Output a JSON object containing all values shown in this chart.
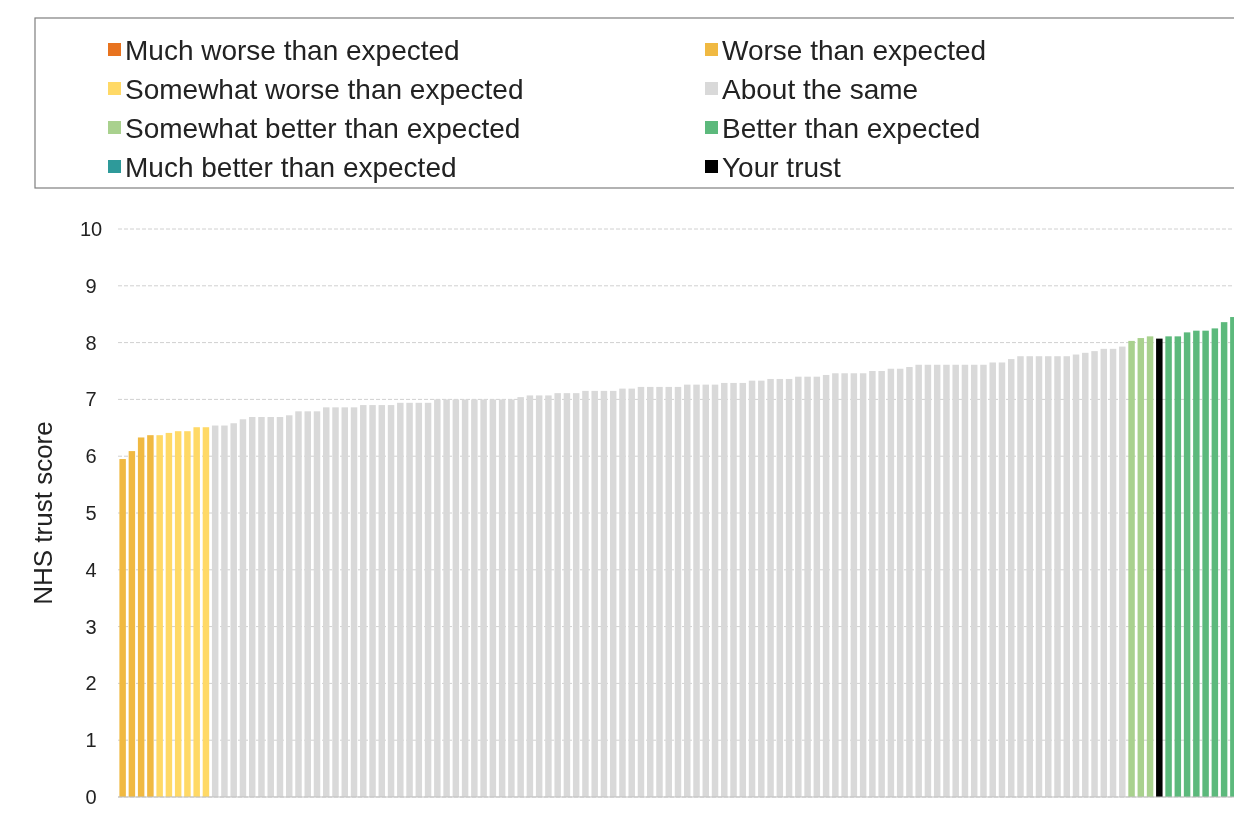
{
  "chart_data": {
    "type": "bar",
    "stacked": true,
    "ylabel": "NHS trust score",
    "ylim": [
      0,
      10
    ],
    "yticks": [
      0,
      1,
      2,
      3,
      4,
      5,
      6,
      7,
      8,
      9,
      10
    ],
    "grid": "y",
    "legend": "top",
    "categories": [
      null,
      null,
      null,
      null,
      null,
      null,
      null,
      null,
      null,
      null,
      null,
      null,
      null,
      null,
      null,
      null,
      null,
      null,
      null,
      null,
      null,
      null,
      null,
      null,
      null,
      null,
      null,
      null,
      null,
      null,
      null,
      null,
      null,
      null,
      null,
      null,
      null,
      null,
      null,
      null,
      null,
      null,
      null,
      null,
      null,
      null,
      null,
      null,
      null,
      null,
      null,
      null,
      null,
      null,
      null,
      null,
      null,
      null,
      null,
      null,
      null,
      null,
      null,
      null,
      null,
      null,
      null,
      null,
      null,
      null,
      null,
      null,
      null,
      null,
      null,
      null,
      null,
      null,
      null,
      null,
      null,
      null,
      null,
      null,
      null,
      null,
      null,
      null,
      null,
      null,
      null,
      null,
      null,
      null,
      null,
      null,
      null,
      null,
      null,
      null,
      null,
      null,
      null,
      null,
      null,
      null,
      null,
      null,
      null,
      null,
      null,
      null,
      null,
      null,
      null,
      null,
      null,
      null,
      null,
      null,
      null
    ],
    "series": [
      {
        "name": "Much worse than expected",
        "color": "#e8731f",
        "values": [
          null,
          null,
          null,
          null,
          null,
          null,
          null,
          null,
          null,
          null,
          null,
          null,
          null,
          null,
          null,
          null,
          null,
          null,
          null,
          null,
          null,
          null,
          null,
          null,
          null,
          null,
          null,
          null,
          null,
          null,
          null,
          null,
          null,
          null,
          null,
          null,
          null,
          null,
          null,
          null,
          null,
          null,
          null,
          null,
          null,
          null,
          null,
          null,
          null,
          null,
          null,
          null,
          null,
          null,
          null,
          null,
          null,
          null,
          null,
          null,
          null,
          null,
          null,
          null,
          null,
          null,
          null,
          null,
          null,
          null,
          null,
          null,
          null,
          null,
          null,
          null,
          null,
          null,
          null,
          null,
          null,
          null,
          null,
          null,
          null,
          null,
          null,
          null,
          null,
          null,
          null,
          null,
          null,
          null,
          null,
          null,
          null,
          null,
          null,
          null,
          null,
          null,
          null,
          null,
          null,
          null,
          null,
          null,
          null,
          null,
          null,
          null,
          null,
          null,
          null,
          null,
          null,
          null,
          null,
          null,
          null
        ]
      },
      {
        "name": "Worse than expected",
        "color": "#f0b942",
        "values": [
          5.95,
          6.09,
          6.33,
          6.37,
          null,
          null,
          null,
          null,
          null,
          null,
          null,
          null,
          null,
          null,
          null,
          null,
          null,
          null,
          null,
          null,
          null,
          null,
          null,
          null,
          null,
          null,
          null,
          null,
          null,
          null,
          null,
          null,
          null,
          null,
          null,
          null,
          null,
          null,
          null,
          null,
          null,
          null,
          null,
          null,
          null,
          null,
          null,
          null,
          null,
          null,
          null,
          null,
          null,
          null,
          null,
          null,
          null,
          null,
          null,
          null,
          null,
          null,
          null,
          null,
          null,
          null,
          null,
          null,
          null,
          null,
          null,
          null,
          null,
          null,
          null,
          null,
          null,
          null,
          null,
          null,
          null,
          null,
          null,
          null,
          null,
          null,
          null,
          null,
          null,
          null,
          null,
          null,
          null,
          null,
          null,
          null,
          null,
          null,
          null,
          null,
          null,
          null,
          null,
          null,
          null,
          null,
          null,
          null,
          null,
          null,
          null,
          null,
          null,
          null,
          null,
          null,
          null,
          null,
          null,
          null,
          null
        ]
      },
      {
        "name": "Somewhat worse than expected",
        "color": "#ffd966",
        "values": [
          null,
          null,
          null,
          null,
          6.37,
          6.41,
          6.44,
          6.44,
          6.51,
          6.51,
          null,
          null,
          null,
          null,
          null,
          null,
          null,
          null,
          null,
          null,
          null,
          null,
          null,
          null,
          null,
          null,
          null,
          null,
          null,
          null,
          null,
          null,
          null,
          null,
          null,
          null,
          null,
          null,
          null,
          null,
          null,
          null,
          null,
          null,
          null,
          null,
          null,
          null,
          null,
          null,
          null,
          null,
          null,
          null,
          null,
          null,
          null,
          null,
          null,
          null,
          null,
          null,
          null,
          null,
          null,
          null,
          null,
          null,
          null,
          null,
          null,
          null,
          null,
          null,
          null,
          null,
          null,
          null,
          null,
          null,
          null,
          null,
          null,
          null,
          null,
          null,
          null,
          null,
          null,
          null,
          null,
          null,
          null,
          null,
          null,
          null,
          null,
          null,
          null,
          null,
          null,
          null,
          null,
          null,
          null,
          null,
          null,
          null,
          null,
          null,
          null,
          null,
          null,
          null,
          null,
          null,
          null,
          null,
          null,
          null,
          null
        ]
      },
      {
        "name": "About the same",
        "color": "#d9d9d9",
        "values": [
          null,
          null,
          null,
          null,
          null,
          null,
          null,
          null,
          null,
          null,
          6.54,
          6.54,
          6.58,
          6.65,
          6.69,
          6.69,
          6.69,
          6.69,
          6.72,
          6.79,
          6.79,
          6.79,
          6.86,
          6.86,
          6.86,
          6.86,
          6.9,
          6.9,
          6.9,
          6.9,
          6.94,
          6.94,
          6.94,
          6.94,
          7.0,
          7.0,
          7.0,
          7.0,
          7.0,
          7.0,
          7.0,
          7.0,
          7.0,
          7.04,
          7.07,
          7.07,
          7.07,
          7.11,
          7.11,
          7.11,
          7.15,
          7.15,
          7.15,
          7.15,
          7.19,
          7.19,
          7.22,
          7.22,
          7.22,
          7.22,
          7.22,
          7.26,
          7.26,
          7.26,
          7.26,
          7.29,
          7.29,
          7.29,
          7.33,
          7.33,
          7.36,
          7.36,
          7.36,
          7.4,
          7.4,
          7.4,
          7.43,
          7.46,
          7.46,
          7.46,
          7.46,
          7.5,
          7.5,
          7.54,
          7.54,
          7.57,
          7.61,
          7.61,
          7.61,
          7.61,
          7.61,
          7.61,
          7.61,
          7.61,
          7.65,
          7.65,
          7.71,
          7.76,
          7.76,
          7.76,
          7.76,
          7.76,
          7.76,
          7.79,
          7.82,
          7.85,
          7.89,
          7.89,
          7.93,
          null,
          null,
          null,
          null,
          null,
          null,
          null,
          null,
          null,
          null,
          null,
          null
        ]
      },
      {
        "name": "Somewhat better than expected",
        "color": "#a9d18e",
        "values": [
          null,
          null,
          null,
          null,
          null,
          null,
          null,
          null,
          null,
          null,
          null,
          null,
          null,
          null,
          null,
          null,
          null,
          null,
          null,
          null,
          null,
          null,
          null,
          null,
          null,
          null,
          null,
          null,
          null,
          null,
          null,
          null,
          null,
          null,
          null,
          null,
          null,
          null,
          null,
          null,
          null,
          null,
          null,
          null,
          null,
          null,
          null,
          null,
          null,
          null,
          null,
          null,
          null,
          null,
          null,
          null,
          null,
          null,
          null,
          null,
          null,
          null,
          null,
          null,
          null,
          null,
          null,
          null,
          null,
          null,
          null,
          null,
          null,
          null,
          null,
          null,
          null,
          null,
          null,
          null,
          null,
          null,
          null,
          null,
          null,
          null,
          null,
          null,
          null,
          null,
          null,
          null,
          null,
          null,
          null,
          null,
          null,
          null,
          null,
          null,
          null,
          null,
          null,
          null,
          null,
          null,
          null,
          null,
          null,
          8.03,
          8.08,
          8.11,
          null,
          null,
          null,
          null,
          null,
          null,
          null,
          null,
          null
        ]
      },
      {
        "name": "Better than expected",
        "color": "#5cb97c",
        "values": [
          null,
          null,
          null,
          null,
          null,
          null,
          null,
          null,
          null,
          null,
          null,
          null,
          null,
          null,
          null,
          null,
          null,
          null,
          null,
          null,
          null,
          null,
          null,
          null,
          null,
          null,
          null,
          null,
          null,
          null,
          null,
          null,
          null,
          null,
          null,
          null,
          null,
          null,
          null,
          null,
          null,
          null,
          null,
          null,
          null,
          null,
          null,
          null,
          null,
          null,
          null,
          null,
          null,
          null,
          null,
          null,
          null,
          null,
          null,
          null,
          null,
          null,
          null,
          null,
          null,
          null,
          null,
          null,
          null,
          null,
          null,
          null,
          null,
          null,
          null,
          null,
          null,
          null,
          null,
          null,
          null,
          null,
          null,
          null,
          null,
          null,
          null,
          null,
          null,
          null,
          null,
          null,
          null,
          null,
          null,
          null,
          null,
          null,
          null,
          null,
          null,
          null,
          null,
          null,
          null,
          null,
          null,
          null,
          null,
          null,
          null,
          null,
          null,
          8.11,
          8.11,
          8.18,
          8.21,
          8.21,
          8.25,
          8.36,
          8.45
        ]
      },
      {
        "name": "Much better than expected",
        "color": "#2e9a9a",
        "values": [
          null,
          null,
          null,
          null,
          null,
          null,
          null,
          null,
          null,
          null,
          null,
          null,
          null,
          null,
          null,
          null,
          null,
          null,
          null,
          null,
          null,
          null,
          null,
          null,
          null,
          null,
          null,
          null,
          null,
          null,
          null,
          null,
          null,
          null,
          null,
          null,
          null,
          null,
          null,
          null,
          null,
          null,
          null,
          null,
          null,
          null,
          null,
          null,
          null,
          null,
          null,
          null,
          null,
          null,
          null,
          null,
          null,
          null,
          null,
          null,
          null,
          null,
          null,
          null,
          null,
          null,
          null,
          null,
          null,
          null,
          null,
          null,
          null,
          null,
          null,
          null,
          null,
          null,
          null,
          null,
          null,
          null,
          null,
          null,
          null,
          null,
          null,
          null,
          null,
          null,
          null,
          null,
          null,
          null,
          null,
          null,
          null,
          null,
          null,
          null,
          null,
          null,
          null,
          null,
          null,
          null,
          null,
          null,
          null,
          null,
          null,
          null,
          null,
          null,
          null,
          null,
          null,
          null,
          null,
          null,
          null
        ]
      },
      {
        "name": "Your trust",
        "color": "#000000",
        "values": [
          null,
          null,
          null,
          null,
          null,
          null,
          null,
          null,
          null,
          null,
          null,
          null,
          null,
          null,
          null,
          null,
          null,
          null,
          null,
          null,
          null,
          null,
          null,
          null,
          null,
          null,
          null,
          null,
          null,
          null,
          null,
          null,
          null,
          null,
          null,
          null,
          null,
          null,
          null,
          null,
          null,
          null,
          null,
          null,
          null,
          null,
          null,
          null,
          null,
          null,
          null,
          null,
          null,
          null,
          null,
          null,
          null,
          null,
          null,
          null,
          null,
          null,
          null,
          null,
          null,
          null,
          null,
          null,
          null,
          null,
          null,
          null,
          null,
          null,
          null,
          null,
          null,
          null,
          null,
          null,
          null,
          null,
          null,
          null,
          null,
          null,
          null,
          null,
          null,
          null,
          null,
          null,
          null,
          null,
          null,
          null,
          null,
          null,
          null,
          null,
          null,
          null,
          null,
          null,
          null,
          null,
          null,
          null,
          null,
          null,
          null,
          null,
          8.07,
          null,
          null,
          null,
          null,
          null,
          null,
          null,
          null
        ]
      }
    ]
  }
}
